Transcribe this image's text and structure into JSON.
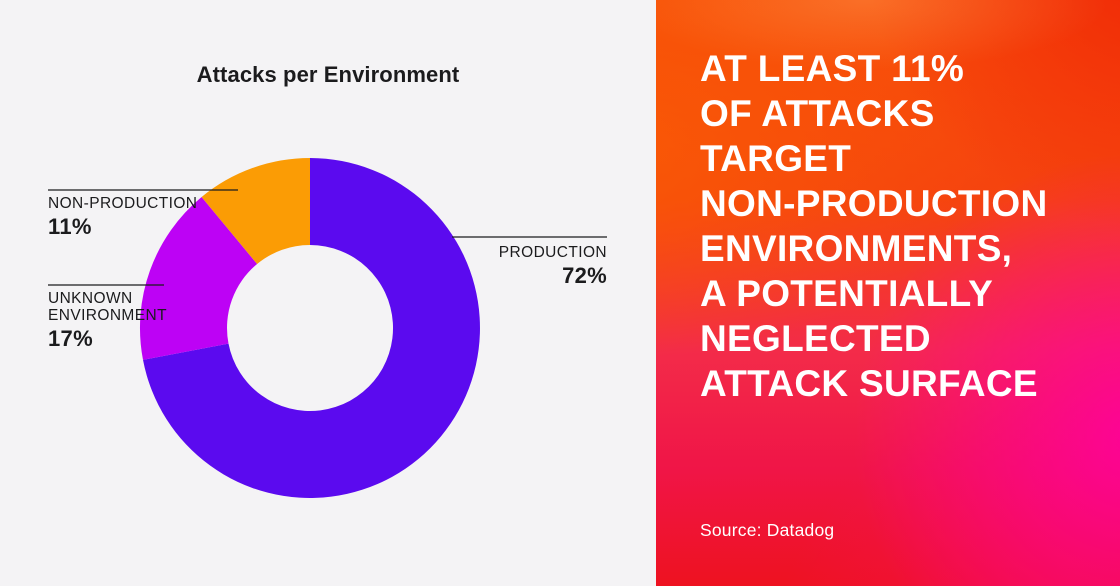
{
  "left_panel": {
    "background_color": "#f4f3f5",
    "text_color": "#1b1b1d",
    "title": "Attacks per Environment"
  },
  "chart_data": {
    "type": "pie",
    "variant": "donut",
    "title": "Attacks per Environment",
    "start_angle_deg": 0,
    "direction": "clockwise",
    "inner_radius_ratio": 0.49,
    "legend_position": "callout-labels",
    "segments": [
      {
        "label": "PRODUCTION",
        "label_lines": [
          "PRODUCTION"
        ],
        "value_pct": 72,
        "display_value": "72%",
        "color": "#5b0aef",
        "label_side": "right"
      },
      {
        "label": "UNKNOWN ENVIRONMENT",
        "label_lines": [
          "UNKNOWN",
          "ENVIRONMENT"
        ],
        "value_pct": 17,
        "display_value": "17%",
        "color": "#bd02f5",
        "label_side": "left"
      },
      {
        "label": "NON-PRODUCTION",
        "label_lines": [
          "NON-PRODUCTION"
        ],
        "value_pct": 11,
        "display_value": "11%",
        "color": "#fb9c05",
        "label_side": "left"
      }
    ]
  },
  "right_panel": {
    "headline_lines": [
      "AT LEAST 11%",
      "OF ATTACKS",
      "TARGET",
      "NON-PRODUCTION",
      "ENVIRONMENTS,",
      "A POTENTIALLY",
      "NEGLECTED",
      "ATTACK SURFACE"
    ],
    "source": "Source: Datadog",
    "text_color": "#ffffff",
    "gradient_colors": {
      "top_orange": "#f85008",
      "mid_orange": "#f5430f",
      "pink": "#f32b49",
      "bottom_red": "#ee1220",
      "magenta_glow": "#ff00a0",
      "orange_glow": "#fa5c04",
      "red_glow": "#ee1c08"
    }
  }
}
